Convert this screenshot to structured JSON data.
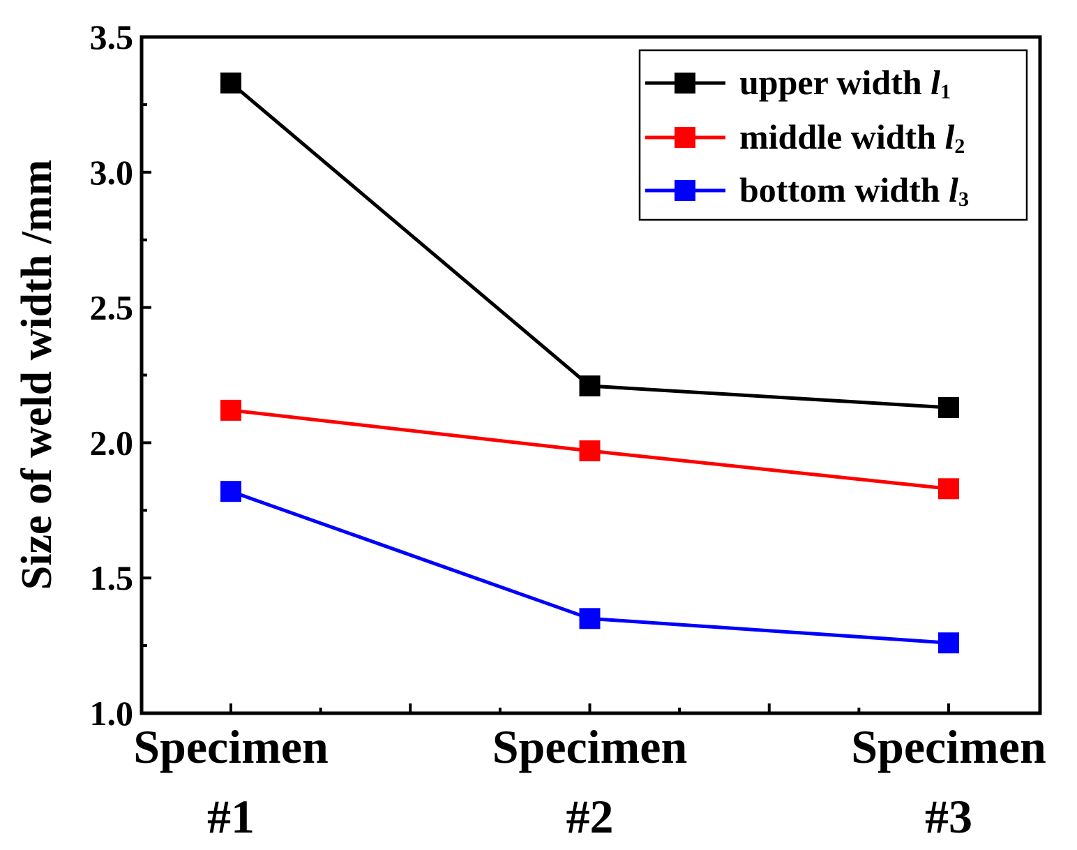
{
  "chart_data": {
    "type": "line",
    "categories": [
      {
        "line1": "Specimen",
        "line2": "#1"
      },
      {
        "line1": "Specimen",
        "line2": "#2"
      },
      {
        "line1": "Specimen",
        "line2": "#3"
      }
    ],
    "series": [
      {
        "name": "upper width ",
        "sym": "l",
        "sub": "1",
        "color": "#000000",
        "values": [
          3.33,
          2.21,
          2.13
        ]
      },
      {
        "name": "middle width ",
        "sym": "l",
        "sub": "2",
        "color": "#ff0000",
        "values": [
          2.12,
          1.97,
          1.83
        ]
      },
      {
        "name": "bottom width ",
        "sym": "l",
        "sub": "3",
        "color": "#0000ff",
        "values": [
          1.82,
          1.35,
          1.26
        ]
      }
    ],
    "ylabel": "Size of weld width /mm",
    "xlabel": "",
    "ylim": [
      1.0,
      3.5
    ],
    "yticks": [
      "1.0",
      "1.5",
      "2.0",
      "2.5",
      "3.0",
      "3.5"
    ],
    "grid": false,
    "legend_position": "top-right",
    "marker": "square"
  }
}
